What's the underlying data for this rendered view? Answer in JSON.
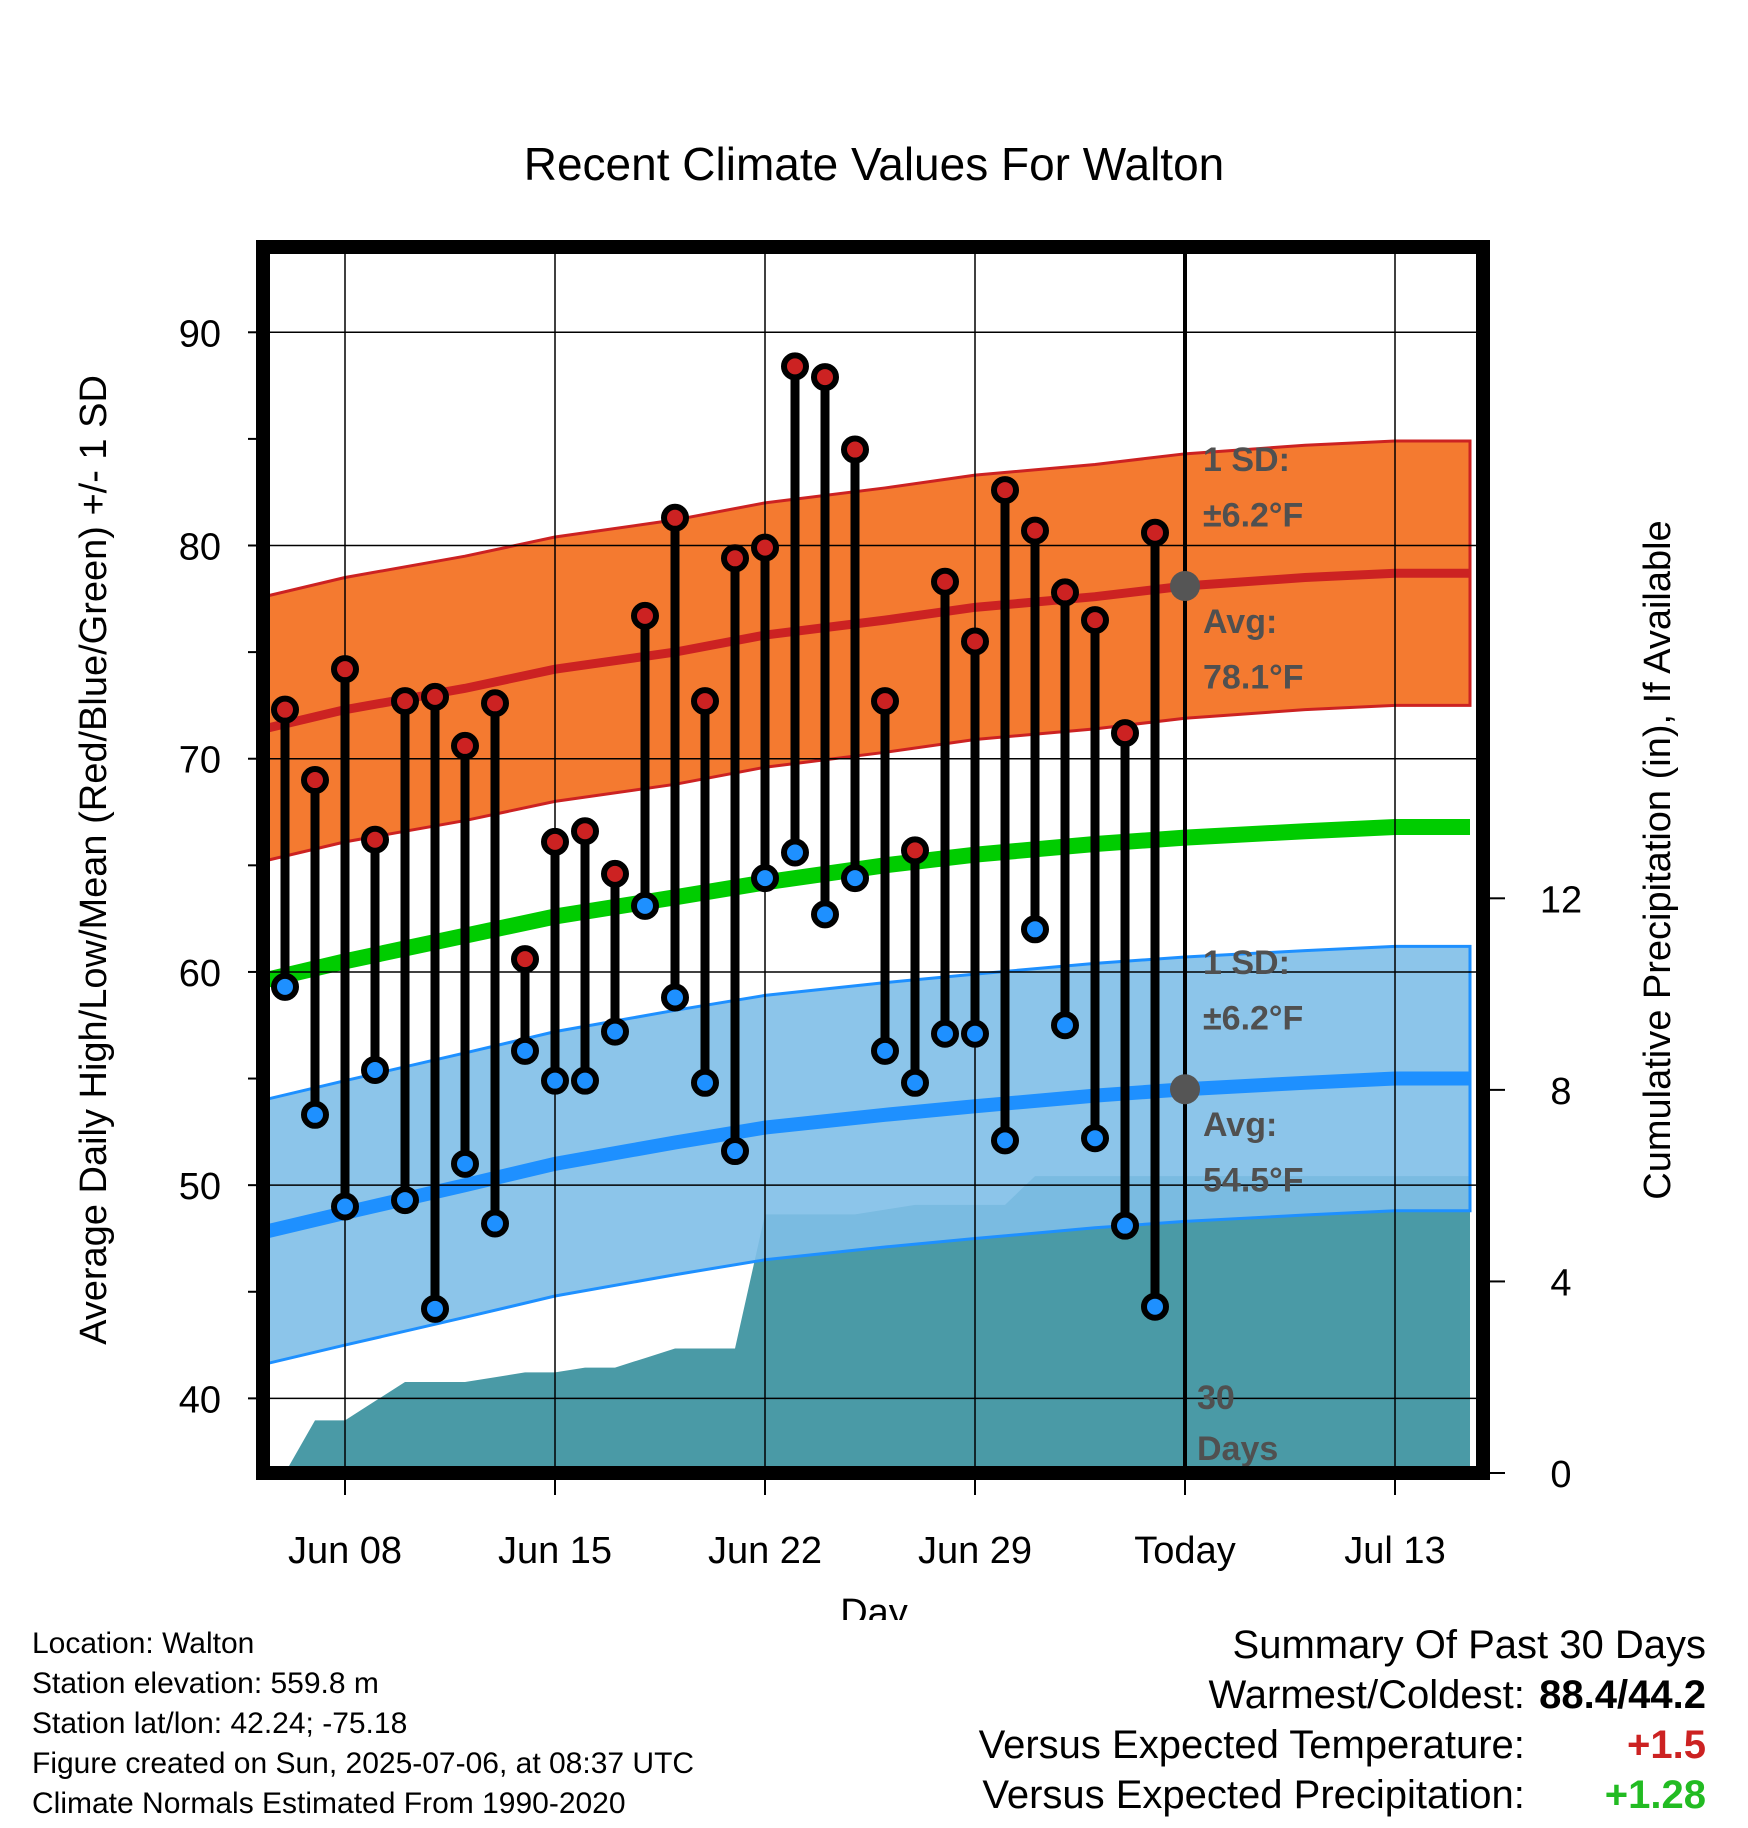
{
  "chart_data": {
    "type": "line",
    "title": "Recent Climate Values For Walton",
    "xlabel": "Day",
    "ylabel": "Average Daily High/Low/Mean (Red/Blue/Green) +/- 1 SD",
    "ylabel_right": "Cumulative Precipitation (in), If Available",
    "x_tick_labels": [
      "Jun 08",
      "Jun 15",
      "Jun 22",
      "Jun 29",
      "Today",
      "Jul 13"
    ],
    "y_ticks": [
      40,
      50,
      60,
      70,
      80,
      90
    ],
    "y_right_ticks": [
      0,
      4,
      8,
      12
    ],
    "ylim": [
      36.5,
      94.0
    ],
    "y_right_lim": [
      0,
      25.6
    ],
    "grid": true,
    "colors": {
      "high": "#cc2222",
      "low": "#1e90ff",
      "mean": "#00cc00",
      "high_band": "#f47a30",
      "low_band": "#7fbfe8",
      "precip": "#4a9aa6"
    },
    "daily": {
      "name_high": "High",
      "name_low": "Low",
      "x_offset": [
        -30,
        -29,
        -28,
        -27,
        -26,
        -25,
        -24,
        -23,
        -22,
        -21,
        -20,
        -19,
        -18,
        -17,
        -16,
        -15,
        -14,
        -13,
        -12,
        -11,
        -10,
        -9,
        -8,
        -7,
        -6,
        -5,
        -4,
        -3,
        -2,
        -1
      ],
      "high": [
        72.3,
        69.0,
        74.2,
        66.2,
        72.7,
        72.9,
        70.6,
        72.6,
        60.6,
        66.1,
        66.6,
        64.6,
        76.7,
        81.3,
        72.7,
        79.4,
        79.9,
        88.4,
        87.9,
        84.5,
        72.7,
        65.7,
        78.3,
        75.5,
        82.6,
        80.7,
        77.8,
        76.5,
        71.2,
        80.6
      ],
      "low": [
        59.3,
        53.3,
        49.0,
        55.4,
        49.3,
        44.2,
        51.0,
        48.2,
        56.3,
        54.9,
        54.9,
        57.2,
        63.1,
        58.8,
        54.8,
        51.6,
        64.4,
        65.6,
        62.7,
        64.4,
        56.3,
        54.8,
        57.1,
        57.1,
        52.1,
        62.0,
        57.5,
        52.2,
        48.1,
        44.3
      ]
    },
    "normals": {
      "x_offset": [
        -31,
        -28,
        -24,
        -21,
        -17,
        -14,
        -10,
        -7,
        -3,
        0,
        4,
        7,
        9.5
      ],
      "high_mean": [
        71.3,
        72.3,
        73.3,
        74.2,
        75.0,
        75.8,
        76.5,
        77.1,
        77.6,
        78.1,
        78.5,
        78.7,
        78.7
      ],
      "high_sd": 6.2,
      "low_mean": [
        47.7,
        48.7,
        50.0,
        51.0,
        52.0,
        52.7,
        53.3,
        53.7,
        54.2,
        54.5,
        54.8,
        55.0,
        55.0
      ],
      "low_sd": 6.2,
      "mean": [
        59.5,
        60.5,
        61.7,
        62.6,
        63.5,
        64.2,
        65.0,
        65.5,
        66.0,
        66.3,
        66.6,
        66.8,
        66.8
      ]
    },
    "precip_cumulative": {
      "x_offset": [
        -30,
        -29,
        -28,
        -27,
        -26,
        -25,
        -24,
        -23,
        -22,
        -21,
        -20,
        -19,
        -18,
        -17,
        -16,
        -15,
        -14,
        -13,
        -12,
        -11,
        -10,
        -9,
        -8,
        -7,
        -6,
        -5,
        -4,
        -3,
        -2,
        -1,
        0,
        9.5
      ],
      "values": [
        0.0,
        1.1,
        1.1,
        1.5,
        1.9,
        1.9,
        1.9,
        2.0,
        2.1,
        2.1,
        2.2,
        2.2,
        2.4,
        2.6,
        2.6,
        2.6,
        5.4,
        5.4,
        5.4,
        5.4,
        5.5,
        5.6,
        5.6,
        5.6,
        5.6,
        6.2,
        6.2,
        6.2,
        6.2,
        6.2,
        6.2,
        6.2
      ]
    },
    "annotations": {
      "high_sd_line1": "1 SD:",
      "high_sd_line2": "±6.2°F",
      "high_avg_line1": "Avg:",
      "high_avg_line2": "78.1°F",
      "low_sd_line1": "1 SD:",
      "low_sd_line2": "±6.2°F",
      "low_avg_line1": "Avg:",
      "low_avg_line2": "54.5°F",
      "period_line1": "30",
      "period_line2": "Days"
    }
  },
  "info": {
    "location": "Location: Walton",
    "elevation": "Station elevation: 559.8 m",
    "latlon": "Station lat/lon: 42.24; -75.18",
    "created": "Figure created on Sun, 2025-07-06, at 08:37 UTC",
    "normals": "Climate Normals Estimated From 1990-2020"
  },
  "summary": {
    "title": "Summary Of Past 30 Days",
    "warm_cold_label": "Warmest/Coldest:",
    "warm_cold_value": "88.4/44.2",
    "temp_label": "Versus Expected Temperature:",
    "temp_value": "+1.5",
    "precip_label": "Versus Expected Precipitation:",
    "precip_value": "+1.28"
  }
}
